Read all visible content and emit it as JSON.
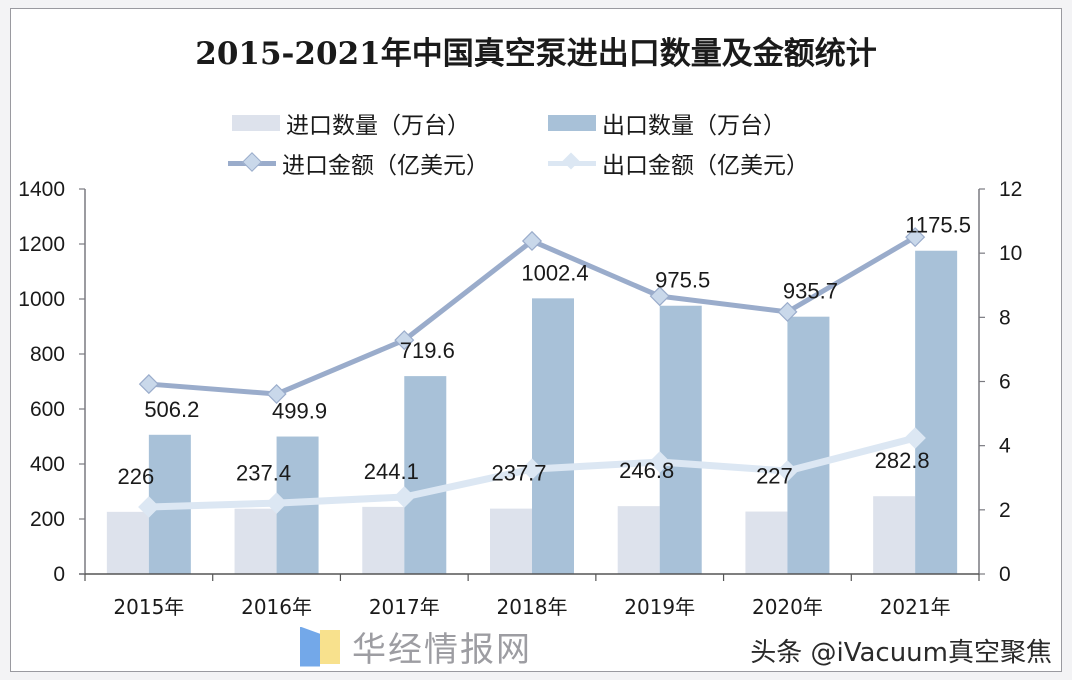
{
  "chart_data": {
    "type": "bar",
    "title": "2015-2021年中国真空泵进出口数量及金额统计",
    "categories": [
      "2015年",
      "2016年",
      "2017年",
      "2018年",
      "2019年",
      "2020年",
      "2021年"
    ],
    "series": [
      {
        "name": "进口数量（万台）",
        "kind": "bar",
        "axis": "left",
        "color": "#dde2ec",
        "values": [
          226,
          237.4,
          244.1,
          237.7,
          246.8,
          227,
          282.8
        ],
        "labels": [
          "226",
          "237.4",
          "244.1",
          "237.7",
          "246.8",
          "227",
          "282.8"
        ]
      },
      {
        "name": "出口数量（万台）",
        "kind": "bar",
        "axis": "left",
        "color": "#a8c1d8",
        "values": [
          506.2,
          499.9,
          719.6,
          1002.4,
          975.5,
          935.7,
          1175.5
        ],
        "labels": [
          "506.2",
          "499.9",
          "719.6",
          "1002.4",
          "975.5",
          "935.7",
          "1175.5"
        ]
      },
      {
        "name": "进口金额（亿美元）",
        "kind": "line",
        "axis": "right",
        "color": "#9aaccb",
        "marker_color": "#c9d8ea",
        "values": [
          5.92,
          5.61,
          7.29,
          10.38,
          8.66,
          8.17,
          10.5
        ]
      },
      {
        "name": "出口金额（亿美元）",
        "kind": "line",
        "axis": "right",
        "color": "#dce7f3",
        "marker_color": "#dce7f3",
        "values": [
          2.09,
          2.21,
          2.4,
          3.27,
          3.49,
          3.21,
          4.24
        ]
      }
    ],
    "y_left": {
      "min": 0,
      "max": 1400,
      "ticks": [
        0,
        200,
        400,
        600,
        800,
        1000,
        1200,
        1400
      ]
    },
    "y_right": {
      "min": 0,
      "max": 12,
      "ticks": [
        0,
        2,
        4,
        6,
        8,
        10,
        12
      ]
    },
    "grid": false,
    "legend_position": "top"
  },
  "watermark": {
    "text": "华经情报网"
  },
  "credit": {
    "text": "头条 @iVacuum真空聚焦"
  }
}
